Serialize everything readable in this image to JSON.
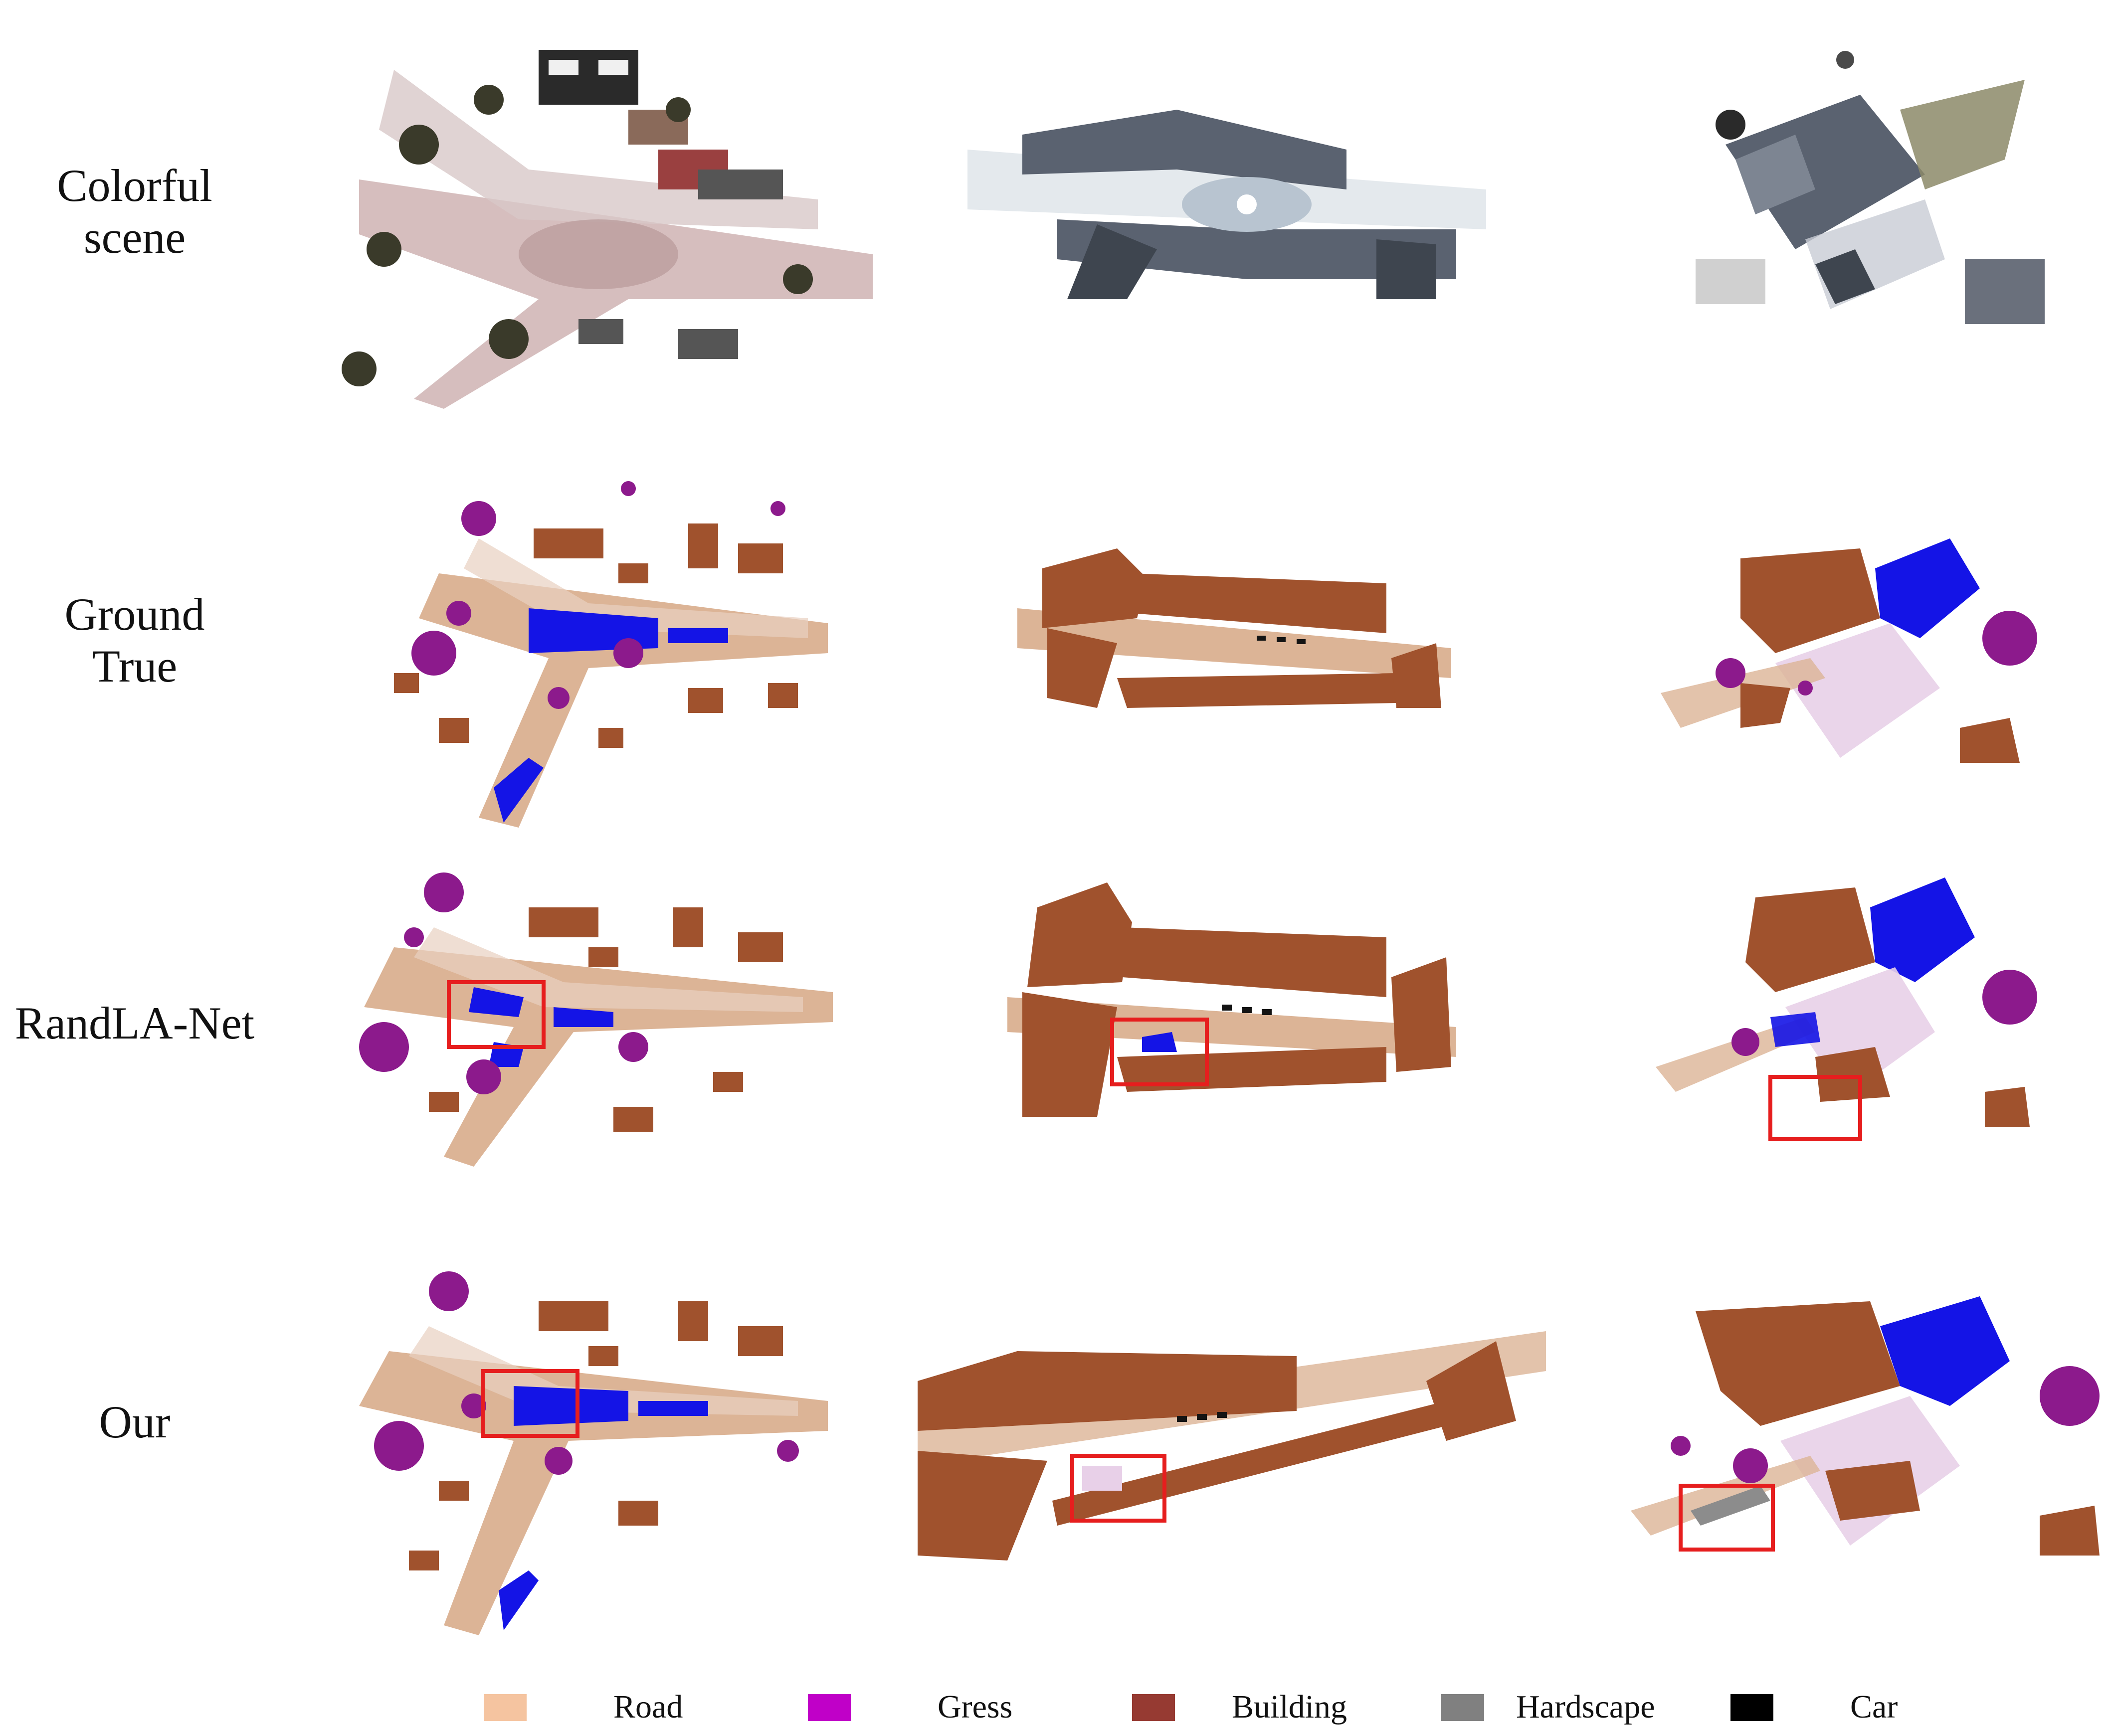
{
  "rows": [
    {
      "label_lines": [
        "Colorful",
        "scene"
      ]
    },
    {
      "label_lines": [
        "Ground",
        "True"
      ]
    },
    {
      "label_lines": [
        "RandLA-Net"
      ]
    },
    {
      "label_lines": [
        "Our"
      ]
    }
  ],
  "legend": [
    {
      "label": "Road",
      "color": "#f5c4a0"
    },
    {
      "label": "Gress",
      "color": "#c000c8"
    },
    {
      "label": "Building",
      "color": "#963a32"
    },
    {
      "label": "Hardscape",
      "color": "#808080"
    },
    {
      "label": "Car",
      "color": "#000000"
    }
  ],
  "class_colors": {
    "road": "#dcb496",
    "vegetation": "#8c1a8c",
    "building": "#a0522d",
    "ground": "#1414e6",
    "hardscape": "#8c8c8c",
    "car": "#141414",
    "highlight_box": "#e61e1e"
  }
}
